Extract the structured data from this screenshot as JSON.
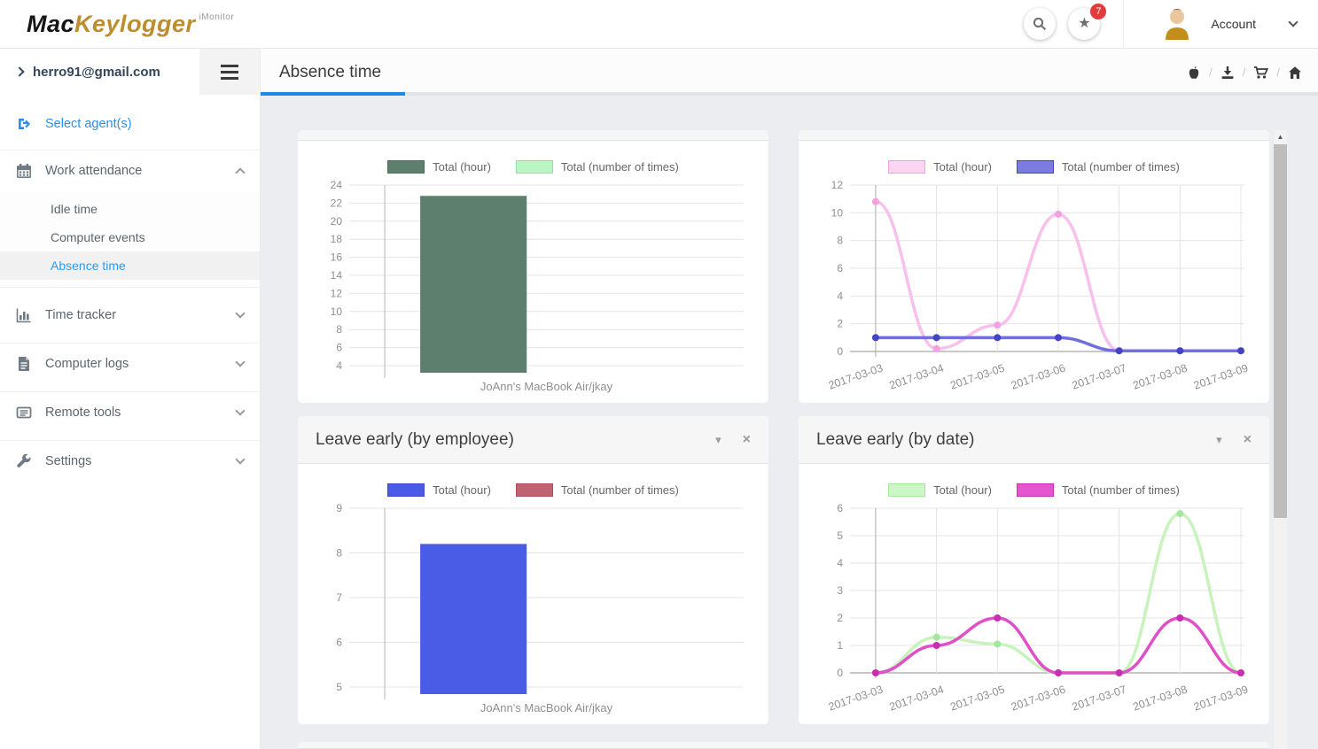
{
  "topbar": {
    "logo_part1": "Mac",
    "logo_part2": "Keylogger",
    "logo_sup": "iMonitor",
    "notification_count": "7",
    "account_label": "Account"
  },
  "sidebar": {
    "email": "herro91@gmail.com",
    "select_agents": "Select agent(s)",
    "work_attendance": {
      "label": "Work attendance",
      "items": [
        "Idle time",
        "Computer events",
        "Absence time"
      ],
      "active": "Absence time"
    },
    "sections": [
      "Time tracker",
      "Computer logs",
      "Remote tools",
      "Settings"
    ]
  },
  "header": {
    "title": "Absence time",
    "icons": [
      "apple-icon",
      "download-icon",
      "cart-icon",
      "home-icon"
    ]
  },
  "panels": [
    {
      "title": "Leave early (by employee)"
    },
    {
      "title": "Leave early (by date)"
    }
  ],
  "chart_data": [
    {
      "type": "bar",
      "categories": [
        "JoAnn's MacBook Air/jkay"
      ],
      "series": [
        {
          "name": "Total (hour)",
          "fill": "#5d7f6d",
          "stroke": "#50705f",
          "values": [
            22.8
          ]
        },
        {
          "name": "Total (number of times)",
          "fill": "#baf5c4",
          "stroke": "#93e0a4",
          "values": [
            null
          ]
        }
      ],
      "ylim": [
        4,
        24
      ],
      "ystep": 2,
      "grid": true,
      "legend_position": "top"
    },
    {
      "type": "line",
      "x": [
        "2017-03-03",
        "2017-03-04",
        "2017-03-05",
        "2017-03-06",
        "2017-03-07",
        "2017-03-08",
        "2017-03-09"
      ],
      "series": [
        {
          "name": "Total (hour)",
          "fill": "#fbd5f3",
          "stroke": "#f3a0e0",
          "line": "#f8c0ed",
          "values": [
            10.8,
            0.2,
            1.9,
            9.9,
            0.05,
            0.05,
            0.05
          ]
        },
        {
          "name": "Total (number of times)",
          "fill": "#7b7be0",
          "stroke": "#4343c6",
          "line": "#6f6fdd",
          "values": [
            1,
            1,
            1,
            1,
            0.05,
            0.05,
            0.05
          ]
        }
      ],
      "ylim": [
        0,
        12
      ],
      "ystep": 2,
      "grid": true,
      "legend_position": "top"
    },
    {
      "type": "bar",
      "title": "Leave early (by employee)",
      "categories": [
        "JoAnn's MacBook Air/jkay"
      ],
      "series": [
        {
          "name": "Total (hour)",
          "fill": "#4a5be5",
          "stroke": "#3d4cd0",
          "values": [
            8.2
          ]
        },
        {
          "name": "Total (number of times)",
          "fill": "#bf6372",
          "stroke": "#aa4e5e",
          "values": [
            null
          ]
        }
      ],
      "ylim": [
        5,
        9
      ],
      "ystep": 1,
      "grid": true,
      "legend_position": "top"
    },
    {
      "type": "line",
      "title": "Leave early (by date)",
      "x": [
        "2017-03-03",
        "2017-03-04",
        "2017-03-05",
        "2017-03-06",
        "2017-03-07",
        "2017-03-08",
        "2017-03-09"
      ],
      "series": [
        {
          "name": "Total (hour)",
          "fill": "#cdf6c6",
          "stroke": "#a2e79b",
          "line": "#c8f3bd",
          "values": [
            0,
            1.3,
            1.05,
            0,
            0,
            5.8,
            0
          ]
        },
        {
          "name": "Total (number of times)",
          "fill": "#e356cd",
          "stroke": "#c92eb2",
          "line": "#df4fc8",
          "values": [
            0,
            1,
            2,
            0,
            0,
            2,
            0
          ]
        }
      ],
      "ylim": [
        0,
        6
      ],
      "ystep": 1,
      "grid": true,
      "legend_position": "top"
    }
  ]
}
